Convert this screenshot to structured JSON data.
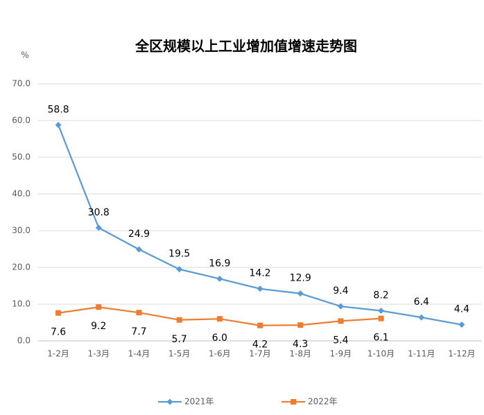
{
  "chart_data": {
    "type": "line",
    "title": "全区规模以上工业增加值增速走势图",
    "y_label": "%",
    "categories": [
      "1-2月",
      "1-3月",
      "1-4月",
      "1-5月",
      "1-6月",
      "1-7月",
      "1-8月",
      "1-9月",
      "1-10月",
      "1-11月",
      "1-12月"
    ],
    "series": [
      {
        "name": "2021年",
        "color": "#5b9bd5",
        "marker": "diamond",
        "values": [
          58.8,
          30.8,
          24.9,
          19.5,
          16.9,
          14.2,
          12.9,
          9.4,
          8.2,
          6.4,
          4.4
        ]
      },
      {
        "name": "2022年",
        "color": "#ed7d31",
        "marker": "square",
        "values": [
          7.6,
          9.2,
          7.7,
          5.7,
          6.0,
          4.2,
          4.3,
          5.4,
          6.1,
          null,
          null
        ],
        "value_labels": [
          "7.6",
          "9.2",
          "7.7",
          "5.7",
          "6.0",
          "4.2",
          "4.3",
          "5.4",
          "6.1",
          null,
          null
        ]
      }
    ],
    "ylim": [
      0,
      70
    ],
    "yticks": [
      {
        "value": 0,
        "label": "0.0"
      },
      {
        "value": 10,
        "label": "10.0"
      },
      {
        "value": 20,
        "label": "20.0"
      },
      {
        "value": 30,
        "label": "30.0"
      },
      {
        "value": 40,
        "label": "40.0"
      },
      {
        "value": 50,
        "label": "50.0"
      },
      {
        "value": 60,
        "label": "60.0"
      },
      {
        "value": 70,
        "label": "70.0"
      }
    ],
    "grid": true,
    "legend": "bottom"
  }
}
